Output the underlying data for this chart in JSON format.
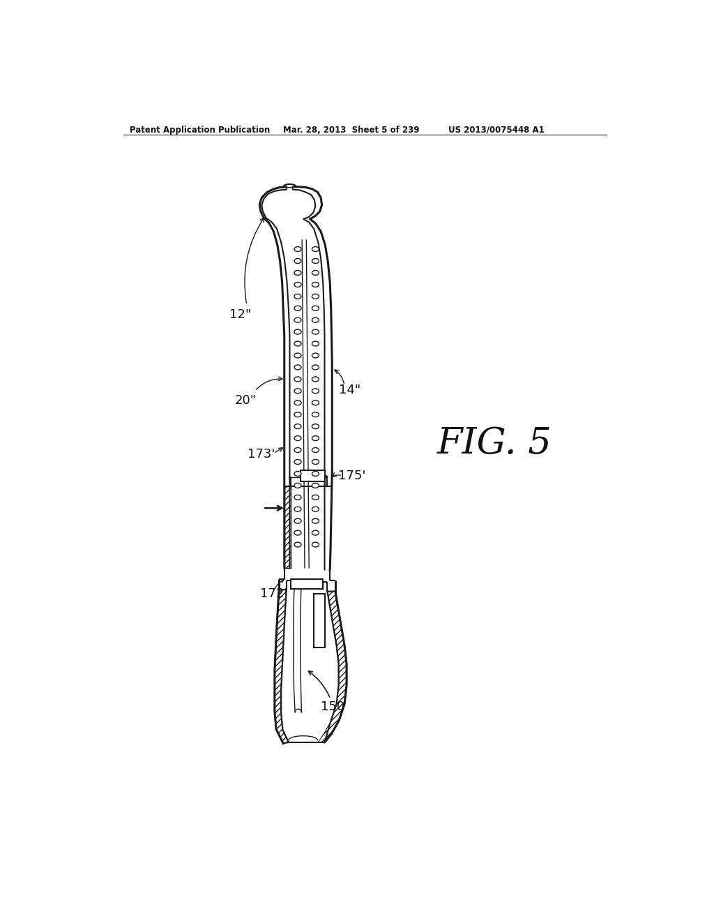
{
  "bg_color": "#ffffff",
  "line_color": "#1a1a1a",
  "header_left": "Patent Application Publication",
  "header_mid": "Mar. 28, 2013  Sheet 5 of 239",
  "header_right": "US 2013/0075448 A1",
  "fig_label": "FIG. 5",
  "lw_outer": 2.2,
  "lw_main": 1.5,
  "lw_thin": 1.0,
  "lw_thick": 2.8
}
